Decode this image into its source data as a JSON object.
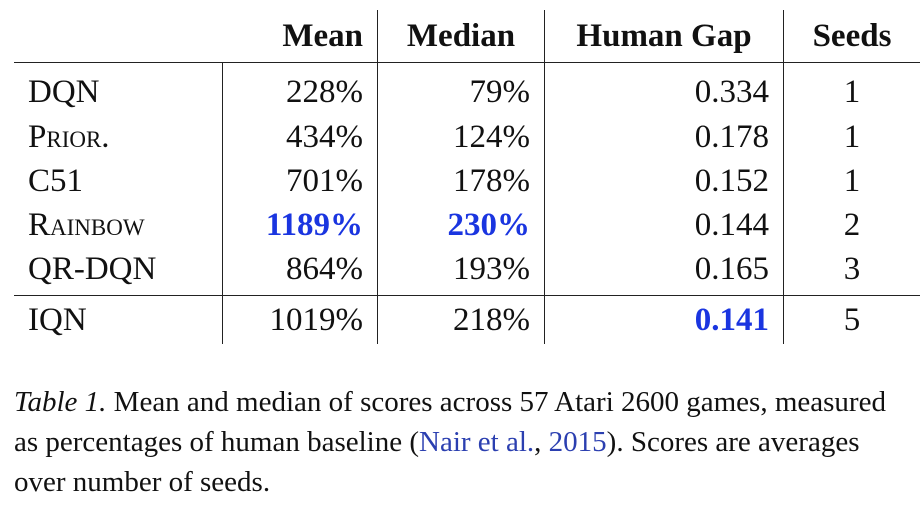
{
  "table": {
    "headers": [
      "",
      "Mean",
      "Median",
      "Human Gap",
      "Seeds"
    ],
    "rows": [
      {
        "method": "DQN",
        "smallcaps": false,
        "mean": "228%",
        "median": "79%",
        "gap": "0.334",
        "seeds": "1",
        "best_mean": false,
        "best_median": false,
        "best_gap": false
      },
      {
        "method": "Prior.",
        "smallcaps": true,
        "mean": "434%",
        "median": "124%",
        "gap": "0.178",
        "seeds": "1",
        "best_mean": false,
        "best_median": false,
        "best_gap": false
      },
      {
        "method": "C51",
        "smallcaps": false,
        "mean": "701%",
        "median": "178%",
        "gap": "0.152",
        "seeds": "1",
        "best_mean": false,
        "best_median": false,
        "best_gap": false
      },
      {
        "method": "Rainbow",
        "smallcaps": true,
        "mean": "1189%",
        "median": "230%",
        "gap": "0.144",
        "seeds": "2",
        "best_mean": true,
        "best_median": true,
        "best_gap": false
      },
      {
        "method": "QR-DQN",
        "smallcaps": false,
        "mean": "864%",
        "median": "193%",
        "gap": "0.165",
        "seeds": "3",
        "best_mean": false,
        "best_median": false,
        "best_gap": false
      },
      {
        "method": "IQN",
        "smallcaps": false,
        "mean": "1019%",
        "median": "218%",
        "gap": "0.141",
        "seeds": "5",
        "best_mean": false,
        "best_median": false,
        "best_gap": true
      }
    ],
    "highlight_color": "#1a35e0"
  },
  "caption": {
    "label": "Table 1.",
    "text_before": " Mean and median of scores across 57 Atari 2600 games, measured as percentages of human baseline (",
    "citation_authors": "Nair et al.",
    "citation_sep": ", ",
    "citation_year": "2015",
    "text_after": "). Scores are averages over number of seeds.",
    "citation_color": "#2b3fb0"
  }
}
